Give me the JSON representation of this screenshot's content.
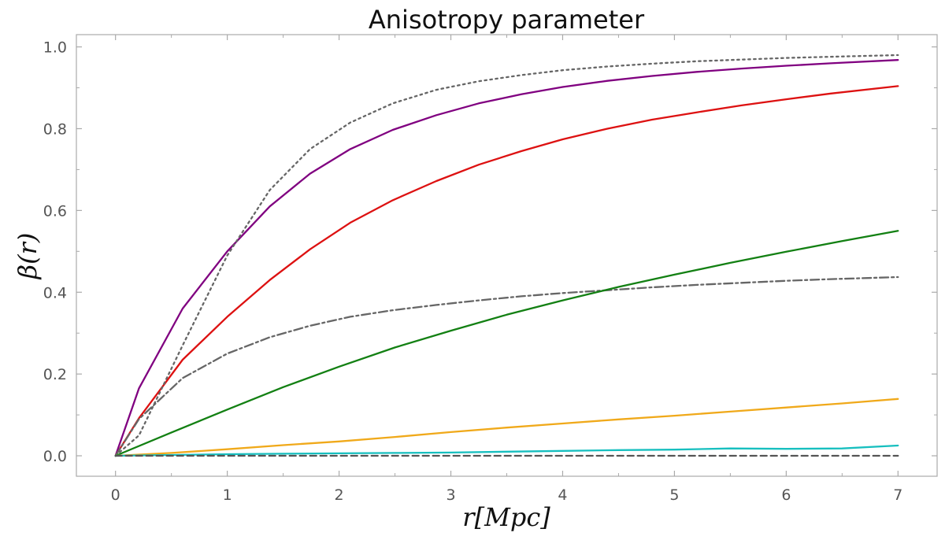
{
  "chart_data": {
    "type": "line",
    "title": "Anisotropy parameter",
    "xlabel": "r[Mpc]",
    "ylabel": "β(r)",
    "xlim": [
      -0.35,
      7.35
    ],
    "ylim": [
      -0.05,
      1.03
    ],
    "xticks": [
      0,
      1,
      2,
      3,
      4,
      5,
      6,
      7
    ],
    "xtick_labels": [
      "0",
      "1",
      "2",
      "3",
      "4",
      "5",
      "6",
      "7"
    ],
    "yticks": [
      0.0,
      0.2,
      0.4,
      0.6,
      0.8,
      1.0
    ],
    "ytick_labels": [
      "0.0",
      "0.2",
      "0.4",
      "0.6",
      "0.8",
      "1.0"
    ],
    "grid": false,
    "legend": "none",
    "series": [
      {
        "color": "#800080",
        "style": "solid",
        "x": [
          0,
          0.21,
          0.6,
          1.0,
          1.38,
          1.74,
          2.1,
          2.48,
          2.87,
          3.25,
          3.63,
          4.0,
          4.4,
          4.8,
          5.2,
          5.6,
          6.0,
          6.4,
          7.0
        ],
        "y": [
          0,
          0.165,
          0.36,
          0.5,
          0.61,
          0.69,
          0.75,
          0.797,
          0.833,
          0.862,
          0.884,
          0.902,
          0.917,
          0.929,
          0.939,
          0.947,
          0.954,
          0.96,
          0.968
        ]
      },
      {
        "color": "#dd1111",
        "style": "solid",
        "x": [
          0,
          0.21,
          0.6,
          1.0,
          1.38,
          1.74,
          2.1,
          2.48,
          2.87,
          3.25,
          3.63,
          4.0,
          4.4,
          4.8,
          5.2,
          5.6,
          6.0,
          6.4,
          7.0
        ],
        "y": [
          0,
          0.092,
          0.235,
          0.34,
          0.43,
          0.505,
          0.57,
          0.625,
          0.672,
          0.712,
          0.745,
          0.774,
          0.8,
          0.822,
          0.84,
          0.857,
          0.872,
          0.886,
          0.904
        ]
      },
      {
        "color": "#666666",
        "style": "dotted",
        "x": [
          0,
          0.21,
          0.6,
          1.0,
          1.38,
          1.74,
          2.1,
          2.48,
          2.87,
          3.25,
          3.63,
          4.0,
          4.4,
          4.8,
          5.2,
          5.6,
          6.0,
          6.4,
          7.0
        ],
        "y": [
          0,
          0.05,
          0.27,
          0.49,
          0.65,
          0.75,
          0.815,
          0.862,
          0.895,
          0.916,
          0.931,
          0.943,
          0.952,
          0.959,
          0.965,
          0.969,
          0.973,
          0.976,
          0.98
        ]
      },
      {
        "color": "#666666",
        "style": "dashdot",
        "x": [
          0,
          0.21,
          0.6,
          1.0,
          1.38,
          1.74,
          2.1,
          2.48,
          2.87,
          3.25,
          3.63,
          4.0,
          4.4,
          4.8,
          5.2,
          5.6,
          6.0,
          6.4,
          7.0
        ],
        "y": [
          0,
          0.09,
          0.19,
          0.25,
          0.29,
          0.318,
          0.34,
          0.356,
          0.369,
          0.38,
          0.39,
          0.398,
          0.405,
          0.412,
          0.418,
          0.423,
          0.428,
          0.432,
          0.437
        ]
      },
      {
        "color": "#138013",
        "style": "solid",
        "x": [
          0,
          0.5,
          1.0,
          1.5,
          2.0,
          2.5,
          3.0,
          3.5,
          4.0,
          4.5,
          5.0,
          5.5,
          6.0,
          6.5,
          7.0
        ],
        "y": [
          0,
          0.057,
          0.113,
          0.168,
          0.218,
          0.265,
          0.306,
          0.345,
          0.38,
          0.413,
          0.443,
          0.472,
          0.499,
          0.525,
          0.55
        ]
      },
      {
        "color": "#f0a91a",
        "style": "solid",
        "x": [
          0,
          0.5,
          1.0,
          1.5,
          2.0,
          2.5,
          3.0,
          3.5,
          4.0,
          4.5,
          5.0,
          5.5,
          6.0,
          6.5,
          7.0
        ],
        "y": [
          0,
          0.007,
          0.016,
          0.026,
          0.035,
          0.046,
          0.058,
          0.069,
          0.079,
          0.089,
          0.098,
          0.108,
          0.118,
          0.128,
          0.139
        ]
      },
      {
        "color": "#17bfbf",
        "style": "solid",
        "x": [
          0,
          0.5,
          1.0,
          1.5,
          2.0,
          2.5,
          3.0,
          3.5,
          4.0,
          4.5,
          5.0,
          5.5,
          6.0,
          6.5,
          7.0
        ],
        "y": [
          0,
          0.002,
          0.004,
          0.005,
          0.006,
          0.007,
          0.008,
          0.01,
          0.012,
          0.014,
          0.015,
          0.018,
          0.017,
          0.018,
          0.025
        ]
      },
      {
        "color": "#555555",
        "style": "dashed",
        "x": [
          0,
          7.0
        ],
        "y": [
          0,
          0
        ]
      }
    ]
  }
}
